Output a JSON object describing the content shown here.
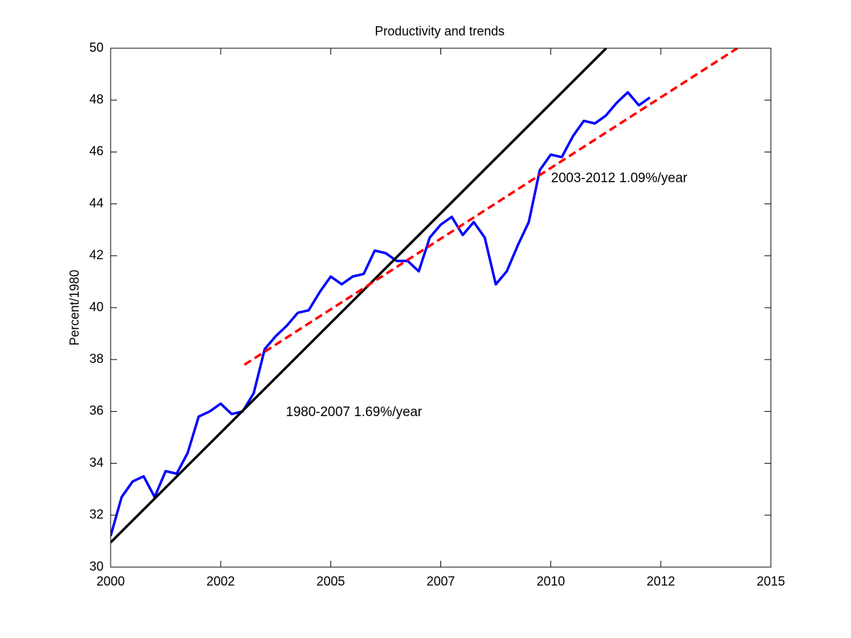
{
  "chart_data": {
    "type": "line",
    "title": "Productivity and trends",
    "y_label": "Percent/1980",
    "xlim": [
      2000,
      2015
    ],
    "ylim": [
      30,
      50
    ],
    "xticks": [
      2000,
      {
        "value": 2002.5,
        "label": "2002"
      },
      2005,
      {
        "value": 2007.5,
        "label": "2007"
      },
      2010,
      {
        "value": 2012.5,
        "label": "2012"
      },
      2015
    ],
    "yticks": [
      30,
      32,
      34,
      36,
      38,
      40,
      42,
      44,
      46,
      48,
      50
    ],
    "grid": false,
    "series": [
      {
        "color": "#0000ff",
        "style": "solid",
        "x": [
          2000,
          2000.25,
          2000.5,
          2000.75,
          2001,
          2001.25,
          2001.5,
          2001.75,
          2002,
          2002.25,
          2002.5,
          2002.75,
          2003,
          2003.25,
          2003.5,
          2003.75,
          2004,
          2004.25,
          2004.5,
          2004.75,
          2005,
          2005.25,
          2005.5,
          2005.75,
          2006,
          2006.25,
          2006.5,
          2006.75,
          2007,
          2007.25,
          2007.5,
          2007.75,
          2008,
          2008.25,
          2008.5,
          2008.75,
          2009,
          2009.25,
          2009.5,
          2009.75,
          2010,
          2010.25,
          2010.5,
          2010.75,
          2011,
          2011.25,
          2011.5,
          2011.75,
          2012,
          2012.25
        ],
        "values": [
          31.2,
          32.7,
          33.3,
          33.5,
          32.7,
          33.7,
          33.6,
          34.4,
          35.8,
          36.0,
          36.3,
          35.9,
          36.0,
          36.7,
          38.4,
          38.9,
          39.3,
          39.8,
          39.9,
          40.6,
          41.2,
          40.9,
          41.2,
          41.3,
          42.2,
          42.1,
          41.8,
          41.8,
          41.4,
          42.7,
          43.2,
          43.5,
          42.8,
          43.3,
          42.7,
          40.9,
          41.4,
          42.4,
          43.3,
          45.3,
          45.9,
          45.8,
          46.6,
          47.2,
          47.1,
          47.4,
          47.9,
          48.3,
          47.8,
          48.1
        ]
      },
      {
        "color": "#000000",
        "style": "solid",
        "x": [
          2000,
          2011.26
        ],
        "values": [
          30.95,
          50
        ]
      },
      {
        "color": "#ff0000",
        "style": "dashed",
        "x": [
          2003.04,
          2014.24
        ],
        "values": [
          37.8,
          50
        ]
      }
    ],
    "annotations": [
      {
        "text": "1980-2007 1.69%/year",
        "color": "#000000"
      },
      {
        "text": "2003-2012 1.09%/year",
        "color": "#ff0000"
      }
    ]
  }
}
